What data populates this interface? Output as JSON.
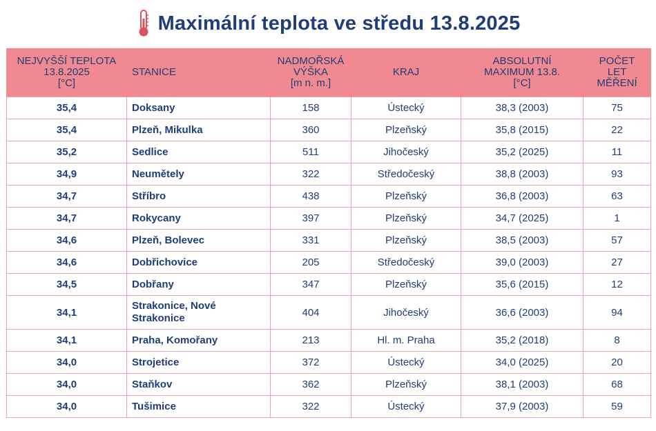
{
  "title": "Maximální teplota ve středu 13.8.2025",
  "icon": "thermometer-icon",
  "colors": {
    "header_bg": "#f08a90",
    "text": "#1f3d7a",
    "thermometer": "#e0505a"
  },
  "table": {
    "headers": {
      "temp": [
        "NEJVYŠŠÍ TEPLOTA",
        "13.8.2025",
        "[°C]"
      ],
      "station": [
        "STANICE"
      ],
      "altitude": [
        "NADMOŘSKÁ",
        "VÝŠKA",
        "[m n. m.]"
      ],
      "region": [
        "KRAJ"
      ],
      "abs_max": [
        "ABSOLUTNÍ",
        "MAXIMUM 13.8.",
        "[°C]"
      ],
      "years": [
        "POČET",
        "LET",
        "MĚŘENÍ"
      ]
    },
    "rows": [
      {
        "temp": "35,4",
        "station": "Doksany",
        "altitude": "158",
        "region": "Ústecký",
        "abs_max": "38,3 (2003)",
        "years": "75"
      },
      {
        "temp": "35,4",
        "station": "Plzeň, Mikulka",
        "altitude": "360",
        "region": "Plzeňský",
        "abs_max": "35,8 (2015)",
        "years": "22"
      },
      {
        "temp": "35,2",
        "station": "Sedlice",
        "altitude": "511",
        "region": "Jihočeský",
        "abs_max": "35,2 (2025)",
        "years": "11"
      },
      {
        "temp": "34,9",
        "station": "Neumětely",
        "altitude": "322",
        "region": "Středočeský",
        "abs_max": "38,8 (2003)",
        "years": "93"
      },
      {
        "temp": "34,7",
        "station": "Stříbro",
        "altitude": "438",
        "region": "Plzeňský",
        "abs_max": "36,8 (2003)",
        "years": "63"
      },
      {
        "temp": "34,7",
        "station": "Rokycany",
        "altitude": "397",
        "region": "Plzeňský",
        "abs_max": "34,7 (2025)",
        "years": "1"
      },
      {
        "temp": "34,6",
        "station": "Plzeň, Bolevec",
        "altitude": "331",
        "region": "Plzeňský",
        "abs_max": "38,5 (2003)",
        "years": "57"
      },
      {
        "temp": "34,6",
        "station": "Dobřichovice",
        "altitude": "205",
        "region": "Středočeský",
        "abs_max": "39,0 (2003)",
        "years": "27"
      },
      {
        "temp": "34,5",
        "station": "Dobřany",
        "altitude": "347",
        "region": "Plzeňský",
        "abs_max": "35,6 (2015)",
        "years": "12"
      },
      {
        "temp": "34,1",
        "station": [
          "Strakonice, Nové",
          "Strakonice"
        ],
        "altitude": "404",
        "region": "Jihočeský",
        "abs_max": "36,6 (2003)",
        "years": "94"
      },
      {
        "temp": "34,1",
        "station": "Praha, Komořany",
        "altitude": "213",
        "region": "Hl. m. Praha",
        "abs_max": "35,2 (2018)",
        "years": "8"
      },
      {
        "temp": "34,0",
        "station": "Strojetice",
        "altitude": "372",
        "region": "Ústecký",
        "abs_max": "34,0 (2025)",
        "years": "20"
      },
      {
        "temp": "34,0",
        "station": "Staňkov",
        "altitude": "362",
        "region": "Plzeňský",
        "abs_max": "38,1 (2003)",
        "years": "68"
      },
      {
        "temp": "34,0",
        "station": "Tušimice",
        "altitude": "322",
        "region": "Ústecký",
        "abs_max": "37,9 (2003)",
        "years": "59"
      }
    ]
  }
}
